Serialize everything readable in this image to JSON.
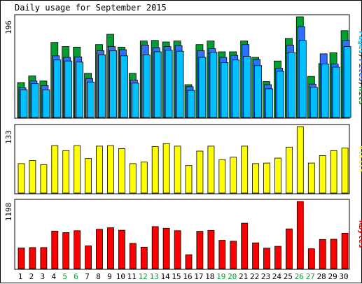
{
  "chart_data": {
    "type": "bar",
    "title": "Daily usage for September 2015",
    "days": [
      "1",
      "2",
      "3",
      "4",
      "5",
      "6",
      "7",
      "8",
      "9",
      "10",
      "11",
      "12",
      "13",
      "14",
      "15",
      "16",
      "17",
      "18",
      "19",
      "20",
      "21",
      "22",
      "23",
      "24",
      "25",
      "26",
      "27",
      "28",
      "29",
      "30"
    ],
    "weekend_days": [
      "5",
      "6",
      "12",
      "13",
      "19",
      "20",
      "26",
      "27"
    ],
    "colors": {
      "hits": "#00a030",
      "files": "#3070ff",
      "pages": "#00c0ff",
      "visits": "#ffff00",
      "kbytes": "#ff0000",
      "weekday_label": "#000000",
      "weekend_label": "#00a030",
      "legend_pages": "#00c0ff",
      "legend_files": "#3070ff",
      "legend_hits": "#00a030",
      "legend_visits": "#ffff00",
      "legend_kbytes": "#ff0000"
    },
    "panels": [
      {
        "name": "pages-files-hits",
        "ymax_label": "196",
        "ymax": 196,
        "legend": [
          "Pages",
          "Files",
          "Hits"
        ],
        "series": [
          {
            "name": "Hits",
            "values": [
              68,
              81,
              71,
              146,
              138,
              137,
              86,
              142,
              162,
              137,
              86,
              149,
              150,
              147,
              149,
              64,
              142,
              149,
              128,
              128,
              149,
              117,
              70,
              110,
              154,
              196,
              80,
              105,
              126,
              169
            ]
          },
          {
            "name": "Files",
            "values": [
              58,
              71,
              62,
              120,
              117,
              118,
              76,
              130,
              138,
              132,
              73,
              141,
              136,
              138,
              140,
              60,
              130,
              134,
              117,
              121,
              142,
              113,
              64,
              96,
              141,
              177,
              65,
              124,
              104,
              150
            ]
          },
          {
            "name": "Pages",
            "values": [
              54,
              66,
              54,
              112,
              110,
              108,
              69,
              122,
              130,
              120,
              67,
              122,
              128,
              131,
              129,
              53,
              117,
              127,
              107,
              112,
              119,
              101,
              56,
              90,
              127,
              150,
              59,
              104,
              98,
              138
            ]
          }
        ]
      },
      {
        "name": "visits",
        "ymax_label": "133",
        "ymax": 133,
        "legend": [
          "Visits"
        ],
        "series": [
          {
            "name": "Visits",
            "values": [
              59,
              65,
              57,
              95,
              85,
              95,
              69,
              94,
              95,
              89,
              59,
              62,
              93,
              99,
              94,
              55,
              84,
              94,
              67,
              72,
              94,
              59,
              60,
              70,
              92,
              133,
              60,
              75,
              85,
              90
            ]
          }
        ]
      },
      {
        "name": "kbytes",
        "ymax_label": "1198",
        "ymax": 1198,
        "legend": [
          "KBytes"
        ],
        "series": [
          {
            "name": "KBytes",
            "values": [
              370,
              375,
              376,
              670,
              643,
              676,
              406,
              702,
              729,
              685,
              450,
              382,
              750,
              720,
              676,
              248,
              666,
              680,
              504,
              489,
              810,
              459,
              366,
              398,
              709,
              1198,
              355,
              520,
              524,
              632
            ]
          }
        ]
      }
    ]
  }
}
